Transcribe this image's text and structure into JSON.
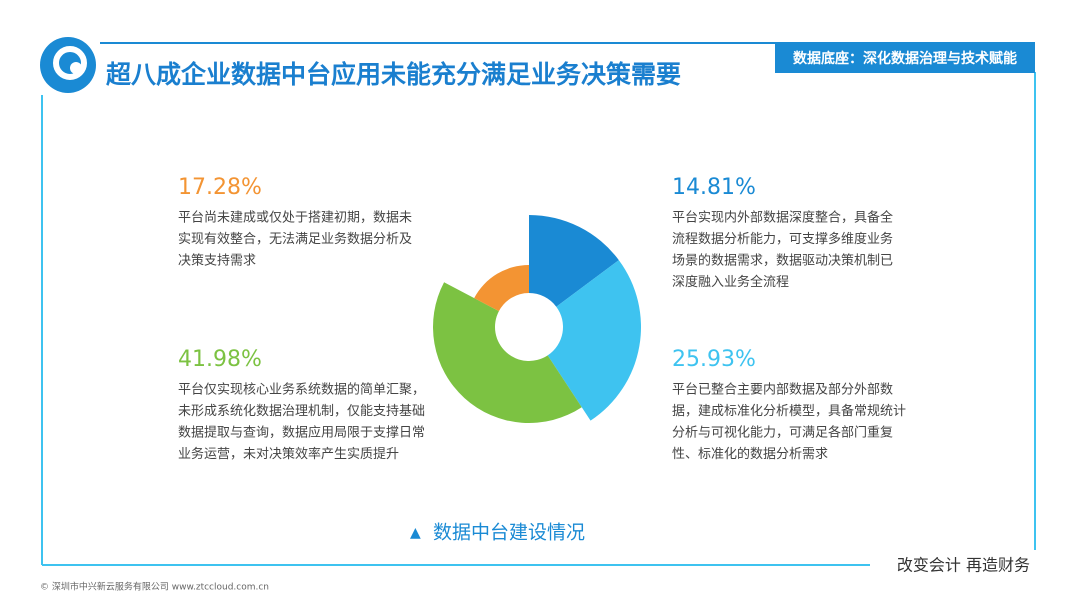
{
  "header": {
    "title": "超八成企业数据中台应用未能充分满足业务决策需要",
    "tag": "数据底座：深化数据治理与技术赋能"
  },
  "chart_data": {
    "type": "pie",
    "caption": "数据中台建设情况",
    "values": [
      14.81,
      25.93,
      41.98,
      17.28
    ],
    "value_labels": [
      "14.81%",
      "25.93%",
      "41.98%",
      "17.28%"
    ],
    "colors": [
      "#1a8ad4",
      "#3ec3f0",
      "#7cc242",
      "#f39433"
    ],
    "descriptions": [
      [
        "平台实现内外部数据深度整合，具备全",
        "流程数据分析能力，可支撑多维度业务",
        "场景的数据需求，数据驱动决策机制已",
        "深度融入业务全流程"
      ],
      [
        "平台已整合主要内部数据及部分外部数",
        "据，建成标准化分析模型，具备常规统计",
        "分析与可视化能力，可满足各部门重复",
        "性、标准化的数据分析需求"
      ],
      [
        "平台仅实现核心业务系统数据的简单汇聚，",
        "未形成系统化数据治理机制，仅能支持基础",
        "数据提取与查询，数据应用局限于支撑日常",
        "业务运营，未对决策效率产生实质提升"
      ],
      [
        "平台尚未建成或仅处于搭建初期，数据未",
        "实现有效整合，无法满足业务数据分析及",
        "决策支持需求"
      ]
    ]
  },
  "footer": {
    "copyright": "© 深圳市中兴新云服务有限公司  www.ztccloud.com.cn",
    "slogan": "改变会计  再造财务"
  }
}
